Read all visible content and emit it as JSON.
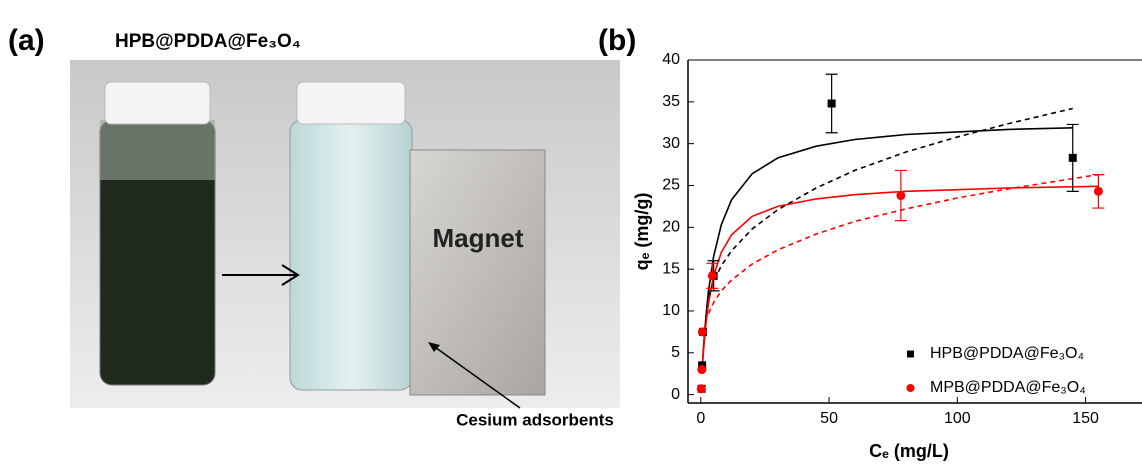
{
  "figure": {
    "panel_a_label": "(a)",
    "panel_a_title": "HPB@PDDA@Fe₃O₄",
    "magnet_label": "Magnet",
    "adsorbent_label": "Cesium adsorbents",
    "panel_b_label": "(b)"
  },
  "chart_data": {
    "type": "scatter",
    "x_label": "Cₑ (mg/L)",
    "y_label": "qₑ (mg/g)",
    "xlim": [
      -5,
      172
    ],
    "xticks": [
      0,
      50,
      100,
      150
    ],
    "ylim": [
      -1,
      40
    ],
    "yticks": [
      0,
      5,
      10,
      15,
      20,
      25,
      30,
      35,
      40
    ],
    "legend": "lower right",
    "series": [
      {
        "name": "HPB@PDDA@Fe₃O₄",
        "color": "#000000",
        "marker": "square",
        "x": [
          0.3,
          0.5,
          0.8,
          5,
          51,
          145
        ],
        "values": [
          0.7,
          3.5,
          7.5,
          14.2,
          34.8,
          28.3
        ],
        "errors": [
          null,
          null,
          null,
          1.8,
          3.5,
          4
        ]
      },
      {
        "name": "MPB@PDDA@Fe₃O₄",
        "color": "#ff0000",
        "marker": "circle",
        "x": [
          0.2,
          0.4,
          0.6,
          4.5,
          78,
          155
        ],
        "values": [
          0.7,
          3.0,
          7.5,
          14.2,
          23.8,
          24.3
        ],
        "errors": [
          null,
          null,
          null,
          1.5,
          3,
          2
        ]
      }
    ],
    "fits": [
      {
        "color": "#000000",
        "dash": false,
        "x": [
          0.5,
          1,
          2,
          3,
          5,
          8,
          12,
          20,
          30,
          45,
          60,
          80,
          100,
          120,
          145
        ],
        "values": [
          3.0,
          5.5,
          9.4,
          12.4,
          16.5,
          20.3,
          23.3,
          26.4,
          28.3,
          29.7,
          30.5,
          31.1,
          31.4,
          31.7,
          31.9
        ]
      },
      {
        "color": "#ff0000",
        "dash": false,
        "x": [
          0.5,
          1,
          2,
          3,
          5,
          8,
          12,
          20,
          30,
          45,
          60,
          80,
          100,
          120,
          155
        ],
        "values": [
          2.8,
          5.1,
          8.5,
          10.9,
          14.2,
          17.0,
          19.1,
          21.3,
          22.5,
          23.4,
          23.9,
          24.3,
          24.5,
          24.7,
          24.9
        ]
      },
      {
        "color": "#000000",
        "dash": true,
        "x": [
          3,
          5,
          8,
          12,
          20,
          30,
          45,
          60,
          80,
          100,
          120,
          145
        ],
        "values": [
          11.7,
          13.5,
          15.4,
          17.2,
          19.8,
          22.1,
          24.7,
          26.8,
          29.0,
          30.8,
          32.4,
          34.2
        ]
      },
      {
        "color": "#ff0000",
        "dash": true,
        "x": [
          3,
          5,
          8,
          12,
          20,
          30,
          45,
          60,
          80,
          100,
          120,
          155
        ],
        "values": [
          9.7,
          11.0,
          12.4,
          13.7,
          15.6,
          17.3,
          19.2,
          20.7,
          22.2,
          23.5,
          24.6,
          26.3
        ]
      }
    ]
  }
}
